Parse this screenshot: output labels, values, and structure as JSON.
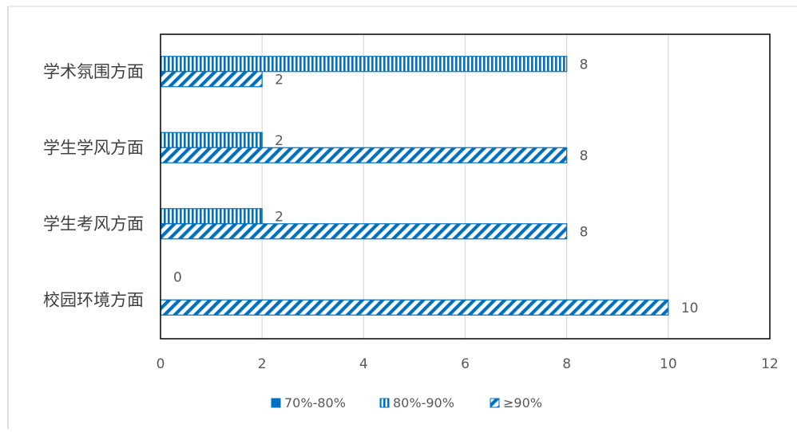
{
  "chart_data": {
    "type": "bar",
    "orientation": "horizontal",
    "categories": [
      "学术氛围方面",
      "学生学风方面",
      "学生考风方面",
      "校园环境方面"
    ],
    "series": [
      {
        "name": "70%-80%",
        "pattern": "solid",
        "values": [
          0,
          0,
          0,
          0
        ]
      },
      {
        "name": "80%-90%",
        "pattern": "vertical-stripes",
        "values": [
          8,
          2,
          2,
          0
        ]
      },
      {
        "name": "≥90%",
        "pattern": "diagonal-stripes",
        "values": [
          2,
          8,
          8,
          10
        ]
      }
    ],
    "data_labels": {
      "80%-90%": [
        "8",
        "2",
        "2",
        "0"
      ],
      "≥90%": [
        "2",
        "8",
        "8",
        "10"
      ]
    },
    "x_ticks": [
      "0",
      "2",
      "4",
      "6",
      "8",
      "10",
      "12"
    ],
    "xlim": [
      0,
      12
    ],
    "grid": true,
    "legend_position": "bottom",
    "colors": {
      "bar": "#0070C0",
      "grid": "#D9D9D9",
      "axis_text": "#595959",
      "frame": "#000000"
    }
  }
}
